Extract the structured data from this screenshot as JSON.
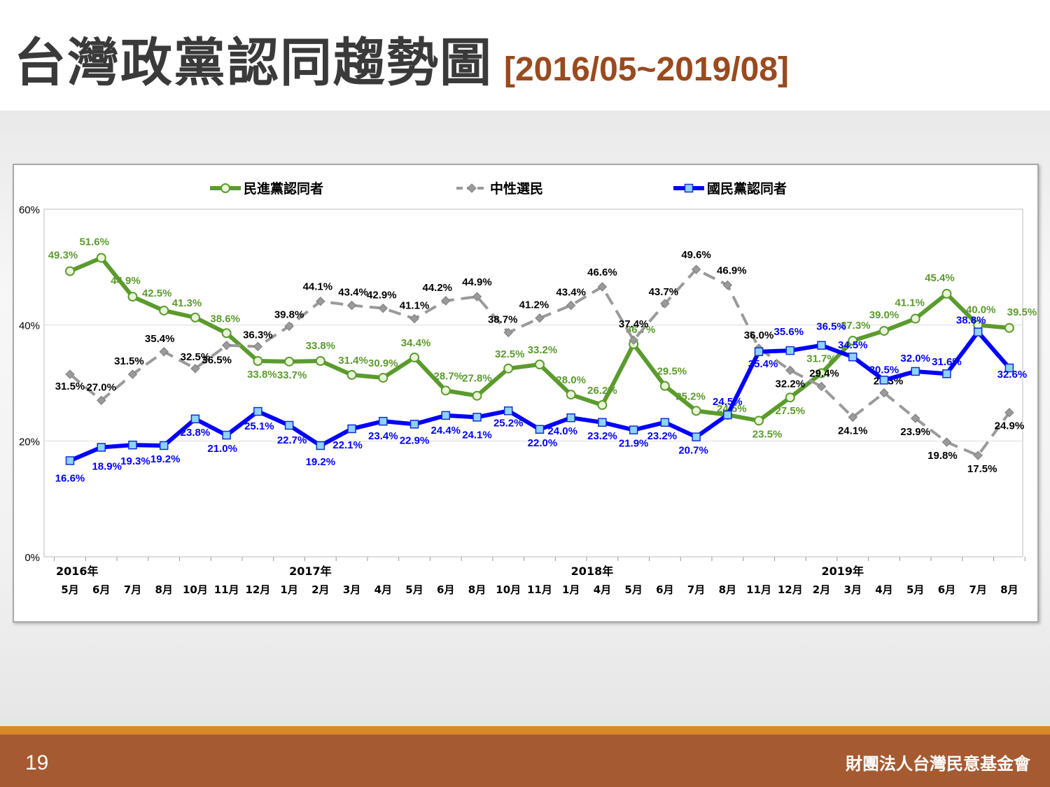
{
  "slide": {
    "title": "台灣政黨認同趨勢圖",
    "date_range": "[2016/05~2019/08]",
    "page_number": "19",
    "organization": "財團法人台灣民意基金會"
  },
  "colors": {
    "dpp": "#5b9b2e",
    "neutral": "#9a9a9a",
    "kmt": "#0000ff",
    "title_range": "#9a4a1e",
    "footer": "#a65a31"
  },
  "chart_data": {
    "type": "line",
    "title": "",
    "xlabel": "",
    "ylabel": "",
    "ylim": [
      0,
      60
    ],
    "yticks": [
      "0%",
      "20%",
      "40%",
      "60%"
    ],
    "grid": "horizontal gridlines at 20% and 40%",
    "legend_position": "top",
    "categories": [
      "5月",
      "6月",
      "7月",
      "8月",
      "10月",
      "11月",
      "12月",
      "1月",
      "2月",
      "3月",
      "4月",
      "5月",
      "6月",
      "8月",
      "10月",
      "11月",
      "1月",
      "4月",
      "5月",
      "6月",
      "7月",
      "8月",
      "11月",
      "12月",
      "2月",
      "3月",
      "4月",
      "5月",
      "6月",
      "7月",
      "8月"
    ],
    "year_labels": [
      {
        "label": "2016年",
        "index": 0
      },
      {
        "label": "2017年",
        "index": 7
      },
      {
        "label": "2018年",
        "index": 16
      },
      {
        "label": "2019年",
        "index": 24
      }
    ],
    "series": [
      {
        "name": "民進黨認同者",
        "color": "#5b9b2e",
        "style": "solid",
        "marker": "circle",
        "values": [
          49.3,
          51.6,
          44.9,
          42.5,
          41.3,
          38.6,
          33.8,
          33.7,
          33.8,
          31.4,
          30.9,
          34.4,
          28.7,
          27.8,
          32.5,
          33.2,
          28.0,
          26.2,
          36.7,
          29.5,
          25.2,
          24.5,
          23.5,
          27.5,
          31.7,
          37.3,
          39.0,
          41.1,
          45.4,
          40.0,
          39.5
        ],
        "labels": [
          "49.3%",
          "51.6%",
          "44.9%",
          "42.5%",
          "41.3%",
          "38.6%",
          "33.8%",
          "33.7%",
          "33.8%",
          "31.4%",
          "30.9%",
          "34.4%",
          "28.7%",
          "27.8%",
          "32.5%",
          "33.2%",
          "28.0%",
          "26.2%",
          "36.7%",
          "29.5%",
          "25.2%",
          "24.5%",
          "23.5%",
          "27.5%",
          "31.7%",
          "37.3%",
          "39.0%",
          "41.1%",
          "45.4%",
          "40.0%",
          "39.5%"
        ]
      },
      {
        "name": "中性選民",
        "color": "#9a9a9a",
        "style": "dashed",
        "marker": "diamond",
        "values": [
          31.5,
          27.0,
          31.5,
          35.4,
          32.5,
          36.5,
          36.3,
          39.8,
          44.1,
          43.4,
          42.9,
          41.1,
          44.2,
          44.9,
          38.7,
          41.2,
          43.4,
          46.6,
          37.4,
          43.7,
          49.6,
          46.9,
          36.0,
          32.2,
          29.4,
          24.1,
          28.3,
          23.9,
          19.8,
          17.5,
          24.9
        ],
        "labels": [
          "31.5%",
          "27.0%",
          "31.5%",
          "35.4%",
          "32.5%",
          "36.5%",
          "36.3%",
          "39.8%",
          "44.1%",
          "43.4%",
          "42.9%",
          "41.1%",
          "44.2%",
          "44.9%",
          "38.7%",
          "41.2%",
          "43.4%",
          "46.6%",
          "37.4%",
          "43.7%",
          "49.6%",
          "46.9%",
          "36.0%",
          "32.2%",
          "29.4%",
          "24.1%",
          "28.3%",
          "23.9%",
          "19.8%",
          "17.5%",
          "24.9%"
        ]
      },
      {
        "name": "國民黨認同者",
        "color": "#0000ff",
        "style": "solid",
        "marker": "square",
        "values": [
          16.6,
          18.9,
          19.3,
          19.2,
          23.8,
          21.0,
          25.1,
          22.7,
          19.2,
          22.1,
          23.4,
          22.9,
          24.4,
          24.1,
          25.2,
          22.0,
          24.0,
          23.2,
          21.9,
          23.2,
          20.7,
          24.5,
          35.4,
          35.6,
          36.5,
          34.5,
          30.5,
          32.0,
          31.6,
          38.8,
          32.6
        ],
        "labels": [
          "16.6%",
          "18.9%",
          "19.3%",
          "19.2%",
          "23.8%",
          "21.0%",
          "25.1%",
          "22.7%",
          "19.2%",
          "22.1%",
          "23.4%",
          "22.9%",
          "24.4%",
          "24.1%",
          "25.2%",
          "22.0%",
          "24.0%",
          "23.2%",
          "21.9%",
          "23.2%",
          "20.7%",
          "24.5%",
          "35.4%",
          "35.6%",
          "36.5%",
          "34.5%",
          "30.5%",
          "32.0%",
          "31.6%",
          "38.8%",
          "32.6%"
        ]
      }
    ]
  }
}
